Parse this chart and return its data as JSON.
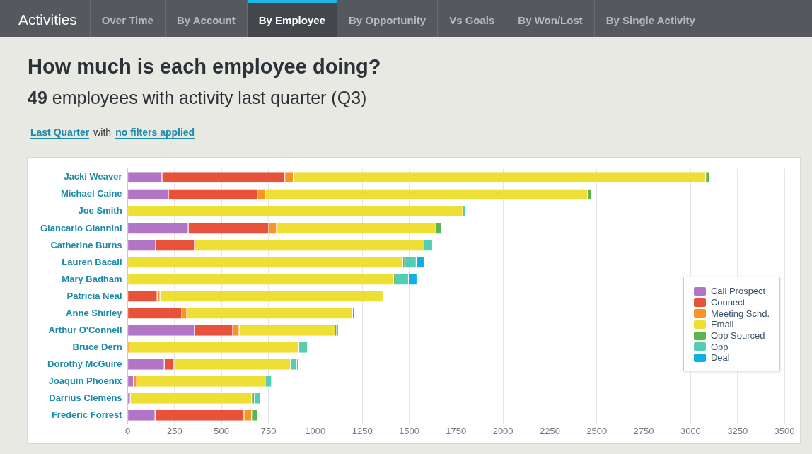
{
  "chart_data": {
    "type": "bar",
    "orientation": "horizontal",
    "stacked": true,
    "title": "How much is each employee doing?",
    "subtitle": "49 employees with activity last quarter (Q3)",
    "annotations": [
      "Activities",
      "Over Time",
      "By Account",
      "By Employee",
      "By Opportunity",
      "Vs Goals",
      "By Won/Lost",
      "By Single Activity",
      "Last Quarter",
      "with",
      "no filters applied"
    ],
    "categories": [
      "Jacki Weaver",
      "Michael Caine",
      "Joe Smith",
      "Giancarlo Giannini",
      "Catherine Burns",
      "Lauren Bacall",
      "Mary Badham",
      "Patricia Neal",
      "Anne Shirley",
      "Arthur O'Connell",
      "Bruce Dern",
      "Dorothy McGuire",
      "Joaquin Phoenix",
      "Darrius Clemens",
      "Frederic Forrest"
    ],
    "series": [
      {
        "name": "Call Prospect",
        "color": "#b275c6",
        "values": [
          184,
          218,
          null,
          324,
          150,
          null,
          null,
          null,
          null,
          357,
          null,
          196,
          32,
          15,
          147
        ]
      },
      {
        "name": "Connect",
        "color": "#e8523a",
        "values": [
          655,
          474,
          null,
          429,
          207,
          null,
          null,
          158,
          290,
          204,
          null,
          52,
          null,
          null,
          474
        ]
      },
      {
        "name": "Meeting Schd.",
        "color": "#f99524",
        "values": [
          45,
          42,
          null,
          41,
          null,
          null,
          null,
          15,
          26,
          34,
          8,
          null,
          17,
          null,
          41
        ]
      },
      {
        "name": "Email",
        "color": "#eedf34",
        "values": [
          2198,
          1719,
          1787,
          850,
          1224,
          1467,
          1418,
          1189,
          884,
          511,
          906,
          621,
          685,
          647,
          null
        ]
      },
      {
        "name": "Opp Sourced",
        "color": "#5bb452",
        "values": [
          22,
          19,
          null,
          30,
          null,
          11,
          8,
          null,
          8,
          9,
          null,
          null,
          null,
          15,
          30
        ]
      },
      {
        "name": "Opp",
        "color": "#55cdb2",
        "values": [
          null,
          null,
          15,
          null,
          45,
          61,
          72,
          null,
          null,
          10,
          46,
          34,
          34,
          31,
          null
        ]
      },
      {
        "name": "Deal",
        "color": "#0fb1e4",
        "values": [
          null,
          null,
          null,
          null,
          null,
          42,
          45,
          null,
          null,
          null,
          null,
          11,
          null,
          null,
          null
        ]
      }
    ],
    "xlim": [
      0,
      3500
    ],
    "xticks": [
      0,
      250,
      500,
      750,
      1000,
      1250,
      1500,
      1750,
      2000,
      2250,
      2500,
      2750,
      3000,
      3250,
      3500
    ],
    "grid": "x",
    "legend": "right"
  }
}
